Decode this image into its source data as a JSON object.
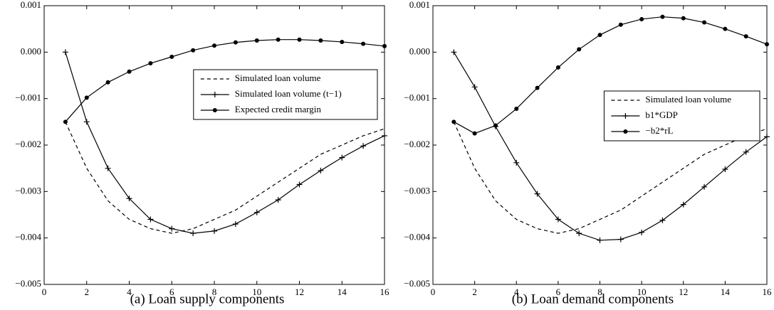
{
  "chart_data": [
    {
      "type": "line",
      "caption": "(a) Loan supply components",
      "x": [
        1,
        2,
        3,
        4,
        5,
        6,
        7,
        8,
        9,
        10,
        11,
        12,
        13,
        14,
        15,
        16
      ],
      "xlim": [
        0,
        16
      ],
      "xticks": [
        0,
        2,
        4,
        6,
        8,
        10,
        12,
        14,
        16
      ],
      "ylim": [
        -0.005,
        0.001
      ],
      "yticks": [
        {
          "value": -0.005,
          "label": "−0.005"
        },
        {
          "value": -0.004,
          "label": "−0.004"
        },
        {
          "value": -0.003,
          "label": "−0.003"
        },
        {
          "value": -0.002,
          "label": "−0.002"
        },
        {
          "value": -0.001,
          "label": "−0.001"
        },
        {
          "value": 0,
          "label": "0.000"
        },
        0.001
      ],
      "legend": "upper right",
      "grid": false,
      "series": [
        {
          "name": "Simulated loan volume",
          "color": "#000000",
          "dash": true,
          "marker": "none",
          "values": [
            -0.0015,
            -0.0025,
            -0.0032,
            -0.0036,
            -0.0038,
            -0.0039,
            -0.0038,
            -0.0036,
            -0.0034,
            -0.0031,
            -0.0028,
            -0.0025,
            -0.0022,
            -0.002,
            -0.0018,
            -0.00165
          ]
        },
        {
          "name": "Simulated loan volume (t−1)",
          "color": "#000000",
          "dash": false,
          "marker": "plus",
          "values": [
            0,
            -0.0015,
            -0.0025,
            -0.00315,
            -0.0036,
            -0.0038,
            -0.0039,
            -0.00385,
            -0.0037,
            -0.00345,
            -0.00318,
            -0.00285,
            -0.00255,
            -0.00227,
            -0.00202,
            -0.0018
          ]
        },
        {
          "name": "Expected credit margin",
          "color": "#000000",
          "dash": false,
          "marker": "dot",
          "values": [
            -0.0015,
            -0.00098,
            -0.00065,
            -0.00042,
            -0.00024,
            -0.0001,
            4e-05,
            0.00014,
            0.00021,
            0.00025,
            0.00027,
            0.00027,
            0.00025,
            0.00022,
            0.00018,
            0.00013
          ]
        }
      ]
    },
    {
      "type": "line",
      "caption": "(b) Loan demand components",
      "x": [
        1,
        2,
        3,
        4,
        5,
        6,
        7,
        8,
        9,
        10,
        11,
        12,
        13,
        14,
        15,
        16
      ],
      "xlim": [
        0,
        16
      ],
      "xticks": [
        0,
        2,
        4,
        6,
        8,
        10,
        12,
        14,
        16
      ],
      "ylim": [
        -0.005,
        0.001
      ],
      "yticks": [
        {
          "value": -0.005,
          "label": "−0.005"
        },
        {
          "value": -0.004,
          "label": "−0.004"
        },
        {
          "value": -0.003,
          "label": "−0.003"
        },
        {
          "value": -0.002,
          "label": "−0.002"
        },
        {
          "value": -0.001,
          "label": "−0.001"
        },
        {
          "value": 0,
          "label": "0.000"
        },
        0.001
      ],
      "legend": "center right",
      "grid": false,
      "series": [
        {
          "name": "Simulated loan volume",
          "color": "#000000",
          "dash": true,
          "marker": "none",
          "values": [
            -0.0015,
            -0.0025,
            -0.0032,
            -0.0036,
            -0.0038,
            -0.0039,
            -0.0038,
            -0.0036,
            -0.0034,
            -0.0031,
            -0.0028,
            -0.0025,
            -0.0022,
            -0.002,
            -0.0018,
            -0.00165
          ]
        },
        {
          "name": "b1*GDP",
          "color": "#000000",
          "dash": false,
          "marker": "plus",
          "values": [
            0,
            -0.00075,
            -0.0016,
            -0.00238,
            -0.00305,
            -0.0036,
            -0.0039,
            -0.00405,
            -0.00403,
            -0.00388,
            -0.00362,
            -0.00328,
            -0.0029,
            -0.00252,
            -0.00215,
            -0.00182
          ]
        },
        {
          "name": "−b2*rL",
          "color": "#000000",
          "dash": false,
          "marker": "dot",
          "values": [
            -0.0015,
            -0.00175,
            -0.00158,
            -0.00122,
            -0.00077,
            -0.00033,
            6e-05,
            0.00037,
            0.00059,
            0.00071,
            0.00076,
            0.00073,
            0.00064,
            0.0005,
            0.00034,
            0.00017
          ]
        }
      ]
    }
  ]
}
